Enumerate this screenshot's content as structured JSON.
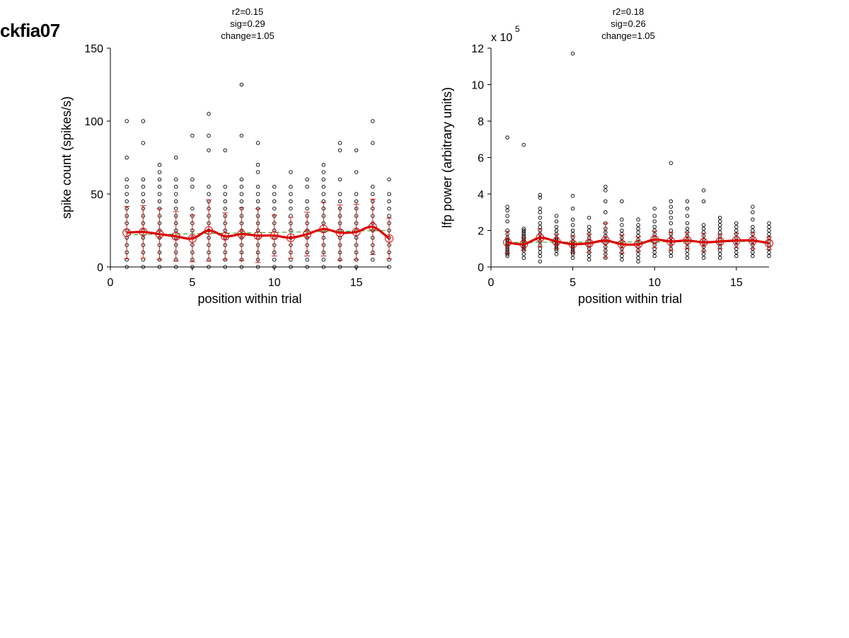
{
  "figure_title": "ckfia07",
  "colors": {
    "points": "#000000",
    "mean_line": "#dd0000",
    "error_bars": "#cc2222",
    "fit_line": "#33aa33",
    "axes": "#000000"
  },
  "chart_data": [
    {
      "type": "scatter",
      "title_lines": [
        "r2=0.15",
        "sig=0.29",
        "change=1.05"
      ],
      "xlabel": "position within trial",
      "ylabel": "spike count (spikes/s)",
      "y_multiplier": "",
      "xlim": [
        0,
        17
      ],
      "ylim": [
        0,
        150
      ],
      "xticks": [
        0,
        5,
        10,
        15
      ],
      "yticks": [
        0,
        50,
        100,
        150
      ],
      "grid": false,
      "mean": {
        "x": [
          1,
          2,
          3,
          4,
          5,
          6,
          7,
          8,
          9,
          10,
          11,
          12,
          13,
          14,
          15,
          16,
          17
        ],
        "y": [
          23.5,
          24,
          22.5,
          21,
          19.5,
          25,
          21,
          22.5,
          21.5,
          21.5,
          20,
          22.5,
          26,
          23.5,
          24,
          27.5,
          19.5
        ],
        "err": [
          18,
          18,
          17.5,
          17,
          16,
          21,
          16,
          18,
          18.5,
          14,
          14,
          15,
          18.5,
          19,
          19,
          19,
          14
        ]
      },
      "fit": {
        "x": [
          1,
          17
        ],
        "y": [
          22,
          25
        ]
      },
      "points": [
        {
          "x": 1,
          "y": [
            0,
            5,
            10,
            15,
            20,
            25,
            30,
            35,
            40,
            45,
            50,
            55,
            60,
            75,
            100
          ]
        },
        {
          "x": 2,
          "y": [
            0,
            5,
            10,
            15,
            20,
            25,
            30,
            35,
            40,
            45,
            50,
            55,
            60,
            85,
            100
          ]
        },
        {
          "x": 3,
          "y": [
            0,
            5,
            10,
            15,
            20,
            25,
            30,
            35,
            40,
            45,
            50,
            55,
            60,
            65,
            70
          ]
        },
        {
          "x": 4,
          "y": [
            0,
            5,
            10,
            15,
            20,
            25,
            30,
            35,
            40,
            45,
            50,
            55,
            60,
            75
          ]
        },
        {
          "x": 5,
          "y": [
            0,
            5,
            10,
            15,
            20,
            25,
            30,
            35,
            40,
            55,
            60,
            90
          ]
        },
        {
          "x": 6,
          "y": [
            0,
            5,
            10,
            15,
            20,
            25,
            30,
            35,
            40,
            45,
            50,
            55,
            80,
            90,
            105
          ]
        },
        {
          "x": 7,
          "y": [
            0,
            5,
            10,
            15,
            20,
            25,
            30,
            35,
            40,
            45,
            50,
            55,
            80
          ]
        },
        {
          "x": 8,
          "y": [
            0,
            5,
            10,
            15,
            20,
            25,
            30,
            35,
            40,
            45,
            50,
            55,
            60,
            90,
            125
          ]
        },
        {
          "x": 9,
          "y": [
            0,
            5,
            10,
            15,
            20,
            25,
            30,
            35,
            40,
            45,
            50,
            55,
            65,
            70,
            85
          ]
        },
        {
          "x": 10,
          "y": [
            0,
            5,
            10,
            15,
            20,
            25,
            30,
            35,
            40,
            45,
            50,
            55
          ]
        },
        {
          "x": 11,
          "y": [
            0,
            5,
            10,
            15,
            20,
            25,
            30,
            35,
            40,
            45,
            50,
            55,
            65
          ]
        },
        {
          "x": 12,
          "y": [
            0,
            5,
            10,
            15,
            20,
            25,
            30,
            35,
            40,
            45,
            55,
            60
          ]
        },
        {
          "x": 13,
          "y": [
            0,
            5,
            10,
            15,
            20,
            25,
            30,
            35,
            40,
            45,
            50,
            55,
            60,
            65,
            70
          ]
        },
        {
          "x": 14,
          "y": [
            0,
            5,
            10,
            15,
            20,
            25,
            30,
            35,
            40,
            45,
            50,
            60,
            80,
            85
          ]
        },
        {
          "x": 15,
          "y": [
            0,
            5,
            10,
            15,
            20,
            25,
            30,
            35,
            40,
            45,
            50,
            65,
            80
          ]
        },
        {
          "x": 16,
          "y": [
            5,
            10,
            15,
            20,
            25,
            30,
            35,
            40,
            45,
            50,
            55,
            85,
            100
          ]
        },
        {
          "x": 17,
          "y": [
            0,
            5,
            10,
            15,
            20,
            25,
            30,
            35,
            40,
            45,
            50,
            60
          ]
        }
      ]
    },
    {
      "type": "scatter",
      "title_lines": [
        "r2=0.18",
        "sig=0.26",
        "change=1.05"
      ],
      "xlabel": "position within trial",
      "ylabel": "lfp power (arbitrary units)",
      "y_multiplier": "x 10",
      "y_multiplier_exp": "5",
      "xlim": [
        0,
        17
      ],
      "ylim": [
        0,
        12
      ],
      "xticks": [
        0,
        5,
        10,
        15
      ],
      "yticks": [
        0,
        2,
        4,
        6,
        8,
        10,
        12
      ],
      "grid": false,
      "mean": {
        "x": [
          1,
          2,
          3,
          4,
          5,
          6,
          7,
          8,
          9,
          10,
          11,
          12,
          13,
          14,
          15,
          16,
          17
        ],
        "y": [
          1.35,
          1.25,
          1.6,
          1.4,
          1.25,
          1.3,
          1.45,
          1.25,
          1.25,
          1.5,
          1.4,
          1.45,
          1.35,
          1.4,
          1.45,
          1.45,
          1.3
        ],
        "err": [
          0.6,
          0.35,
          0.5,
          0.4,
          0.45,
          0.5,
          0.95,
          0.5,
          0.4,
          0.45,
          0.5,
          0.45,
          0.5,
          0.4,
          0.4,
          0.45,
          0.35
        ]
      },
      "fit": {
        "x": [
          1,
          17
        ],
        "y": [
          1.35,
          1.4
        ]
      },
      "points": [
        {
          "x": 1,
          "y": [
            0.6,
            0.7,
            0.8,
            0.9,
            1.0,
            1.1,
            1.2,
            1.3,
            1.4,
            1.5,
            1.6,
            1.8,
            2.0,
            2.5,
            2.8,
            3.1,
            3.3,
            7.1
          ]
        },
        {
          "x": 2,
          "y": [
            0.5,
            0.7,
            0.9,
            1.0,
            1.1,
            1.2,
            1.3,
            1.4,
            1.5,
            1.6,
            1.7,
            1.8,
            1.9,
            2.0,
            2.1,
            6.7
          ]
        },
        {
          "x": 3,
          "y": [
            0.3,
            0.6,
            0.8,
            1.0,
            1.2,
            1.4,
            1.6,
            1.8,
            2.0,
            2.2,
            2.4,
            2.7,
            3.0,
            3.2,
            3.8,
            3.95
          ]
        },
        {
          "x": 4,
          "y": [
            0.7,
            0.9,
            1.0,
            1.1,
            1.2,
            1.3,
            1.4,
            1.5,
            1.6,
            1.8,
            2.0,
            2.2,
            2.5,
            2.8
          ]
        },
        {
          "x": 5,
          "y": [
            0.5,
            0.7,
            0.8,
            0.9,
            1.0,
            1.1,
            1.2,
            1.3,
            1.4,
            1.6,
            1.8,
            2.0,
            2.3,
            2.6,
            3.2,
            3.9,
            11.7
          ]
        },
        {
          "x": 6,
          "y": [
            0.4,
            0.6,
            0.8,
            1.0,
            1.2,
            1.4,
            1.6,
            1.8,
            2.0,
            2.2,
            2.7
          ]
        },
        {
          "x": 7,
          "y": [
            0.5,
            0.7,
            0.9,
            1.1,
            1.3,
            1.5,
            1.7,
            1.9,
            2.1,
            2.4,
            3.0,
            3.6,
            4.2,
            4.4
          ]
        },
        {
          "x": 8,
          "y": [
            0.4,
            0.6,
            0.8,
            1.0,
            1.2,
            1.4,
            1.6,
            1.8,
            2.0,
            2.3,
            2.6,
            3.6
          ]
        },
        {
          "x": 9,
          "y": [
            0.3,
            0.5,
            0.7,
            0.9,
            1.1,
            1.3,
            1.5,
            1.7,
            1.9,
            2.1,
            2.3,
            2.6
          ]
        },
        {
          "x": 10,
          "y": [
            0.6,
            0.8,
            1.0,
            1.2,
            1.4,
            1.6,
            1.8,
            2.0,
            2.2,
            2.5,
            2.8,
            3.2
          ]
        },
        {
          "x": 11,
          "y": [
            0.6,
            0.8,
            1.0,
            1.2,
            1.4,
            1.6,
            1.8,
            2.0,
            2.4,
            2.7,
            3.0,
            3.3,
            3.6,
            5.7
          ]
        },
        {
          "x": 12,
          "y": [
            0.5,
            0.7,
            0.9,
            1.1,
            1.3,
            1.5,
            1.7,
            1.9,
            2.1,
            2.4,
            2.8,
            3.2,
            3.6
          ]
        },
        {
          "x": 13,
          "y": [
            0.5,
            0.7,
            0.9,
            1.1,
            1.3,
            1.5,
            1.7,
            1.9,
            2.1,
            2.3,
            3.6,
            4.2
          ]
        },
        {
          "x": 14,
          "y": [
            0.5,
            0.7,
            0.9,
            1.1,
            1.3,
            1.5,
            1.7,
            1.9,
            2.1,
            2.3,
            2.5,
            2.7
          ]
        },
        {
          "x": 15,
          "y": [
            0.6,
            0.8,
            1.0,
            1.2,
            1.4,
            1.6,
            1.8,
            2.0,
            2.2,
            2.4
          ]
        },
        {
          "x": 16,
          "y": [
            0.6,
            0.8,
            1.0,
            1.2,
            1.4,
            1.6,
            1.8,
            2.0,
            2.2,
            2.6,
            3.0,
            3.3
          ]
        },
        {
          "x": 17,
          "y": [
            0.6,
            0.8,
            1.0,
            1.2,
            1.4,
            1.6,
            1.8,
            2.0,
            2.2,
            2.4
          ]
        }
      ]
    }
  ]
}
